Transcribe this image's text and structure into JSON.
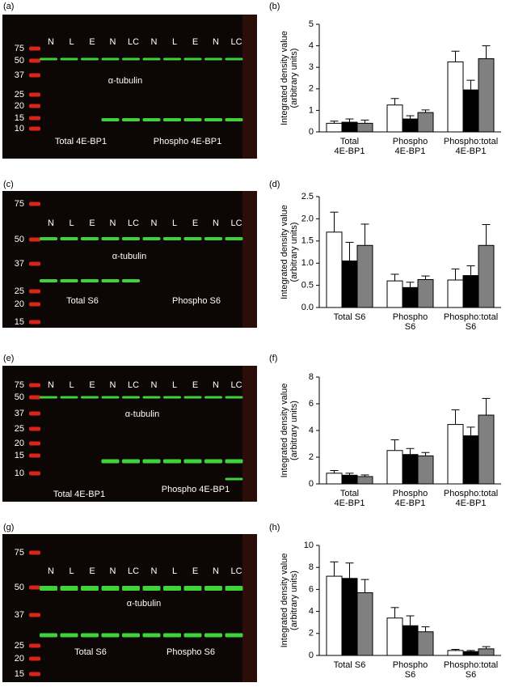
{
  "chart_data": [
    {
      "type": "bar",
      "panel": "(b)",
      "ylabel": [
        "Integrated density value",
        "(arbitrary units)"
      ],
      "categories": [
        [
          "Total",
          "4E-BP1"
        ],
        [
          "Phospho",
          "4E-BP1"
        ],
        [
          "Phospho:total",
          "4E-BP1"
        ]
      ],
      "series": [
        {
          "color": "#ffffff",
          "values": [
            0.4,
            1.25,
            3.25
          ],
          "errors": [
            0.1,
            0.3,
            0.5
          ]
        },
        {
          "color": "#000000",
          "values": [
            0.45,
            0.6,
            1.95
          ],
          "errors": [
            0.15,
            0.15,
            0.45
          ]
        },
        {
          "color": "#808080",
          "values": [
            0.4,
            0.9,
            3.4
          ],
          "errors": [
            0.15,
            0.12,
            0.6
          ]
        }
      ],
      "ylim": [
        0,
        5
      ],
      "yticks": [
        0,
        1,
        2,
        3,
        4,
        5
      ]
    },
    {
      "type": "bar",
      "panel": "(d)",
      "ylabel": [
        "Integrated density value",
        "(arbitrary units)"
      ],
      "categories": [
        [
          "Total S6"
        ],
        [
          "Phospho",
          "S6"
        ],
        [
          "Phospho:total",
          "S6"
        ]
      ],
      "series": [
        {
          "color": "#ffffff",
          "values": [
            1.7,
            0.6,
            0.62
          ],
          "errors": [
            0.45,
            0.15,
            0.25
          ]
        },
        {
          "color": "#000000",
          "values": [
            1.05,
            0.45,
            0.72
          ],
          "errors": [
            0.42,
            0.12,
            0.22
          ]
        },
        {
          "color": "#808080",
          "values": [
            1.4,
            0.63,
            1.4
          ],
          "errors": [
            0.48,
            0.08,
            0.47
          ]
        }
      ],
      "ylim": [
        0,
        2.5
      ],
      "yticks": [
        {
          "value": 0,
          "label": "0.0"
        },
        0.5,
        {
          "value": 1,
          "label": "1.0"
        },
        1.5,
        {
          "value": 2,
          "label": "2.0"
        },
        2.5
      ]
    },
    {
      "type": "bar",
      "panel": "(f)",
      "ylabel": [
        "Integrated density value",
        "(arbitrary units)"
      ],
      "categories": [
        [
          "Total",
          "4E-BP1"
        ],
        [
          "Phospho",
          "4E-BP1"
        ],
        [
          "Phospho:total",
          "4E-BP1"
        ]
      ],
      "series": [
        {
          "color": "#ffffff",
          "values": [
            0.8,
            2.5,
            4.45
          ],
          "errors": [
            0.2,
            0.8,
            1.1
          ]
        },
        {
          "color": "#000000",
          "values": [
            0.65,
            2.2,
            3.6
          ],
          "errors": [
            0.15,
            0.45,
            0.65
          ]
        },
        {
          "color": "#808080",
          "values": [
            0.55,
            2.1,
            5.15
          ],
          "errors": [
            0.12,
            0.25,
            1.25
          ]
        }
      ],
      "ylim": [
        0,
        8
      ],
      "yticks": [
        0,
        2,
        4,
        6,
        8
      ]
    },
    {
      "type": "bar",
      "panel": "(h)",
      "ylabel": [
        "Integrated density value",
        "(arbitrary units)"
      ],
      "categories": [
        [
          "Total S6"
        ],
        [
          "Phospho",
          "S6"
        ],
        [
          "Phospho:total",
          "S6"
        ]
      ],
      "series": [
        {
          "color": "#ffffff",
          "values": [
            7.2,
            3.4,
            0.45
          ],
          "errors": [
            1.3,
            0.95,
            0.1
          ]
        },
        {
          "color": "#000000",
          "values": [
            7.0,
            2.7,
            0.35
          ],
          "errors": [
            1.4,
            0.9,
            0.1
          ]
        },
        {
          "color": "#808080",
          "values": [
            5.7,
            2.15,
            0.6
          ],
          "errors": [
            1.2,
            0.45,
            0.2
          ]
        }
      ],
      "ylim": [
        0,
        10
      ],
      "yticks": [
        0,
        2,
        4,
        6,
        8,
        10
      ]
    }
  ],
  "blots": [
    {
      "panel": "(a)",
      "markers": [
        "75",
        "50",
        "37",
        "25",
        "20",
        "15",
        "10"
      ],
      "lanes": [
        "N",
        "L",
        "E",
        "N",
        "LC",
        "N",
        "L",
        "E",
        "N",
        "LC"
      ],
      "labels": [
        "α-tubulin",
        "Total 4E-BP1",
        "Phospho 4E-BP1"
      ]
    },
    {
      "panel": "(c)",
      "markers": [
        "75",
        "50",
        "37",
        "25",
        "20",
        "15"
      ],
      "lanes": [
        "N",
        "L",
        "E",
        "N",
        "LC",
        "N",
        "L",
        "E",
        "N",
        "LC"
      ],
      "labels": [
        "α-tubulin",
        "Total S6",
        "Phospho S6"
      ]
    },
    {
      "panel": "(e)",
      "markers": [
        "75",
        "50",
        "37",
        "25",
        "20",
        "15",
        "10"
      ],
      "lanes": [
        "N",
        "L",
        "E",
        "N",
        "LC",
        "N",
        "L",
        "E",
        "N",
        "LC"
      ],
      "labels": [
        "α-tubulin",
        "Total 4E-BP1",
        "Phospho 4E-BP1"
      ]
    },
    {
      "panel": "(g)",
      "markers": [
        "75",
        "50",
        "37",
        "25",
        "20",
        "15"
      ],
      "lanes": [
        "N",
        "L",
        "E",
        "N",
        "LC",
        "N",
        "L",
        "E",
        "N",
        "LC"
      ],
      "labels": [
        "α-tubulin",
        "Total S6",
        "Phospho S6"
      ]
    }
  ]
}
